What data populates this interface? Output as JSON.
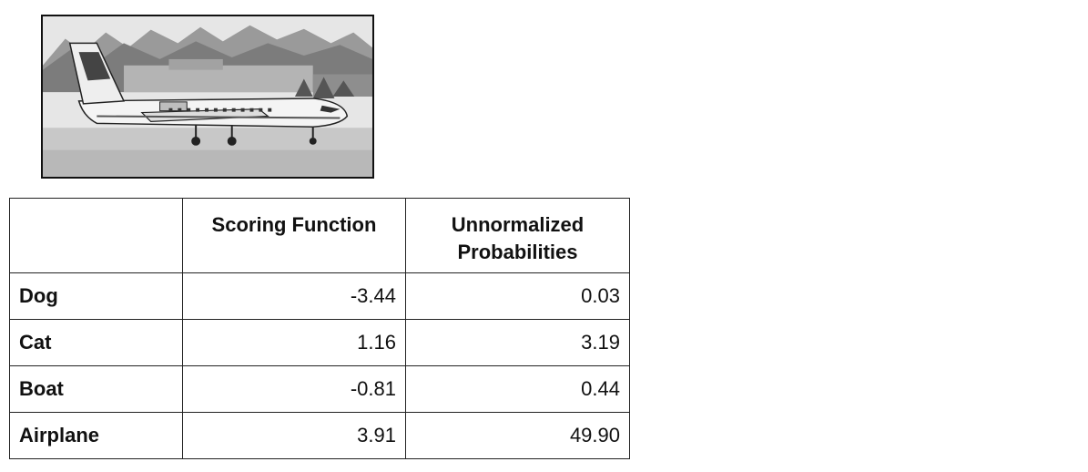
{
  "photo": {
    "description_icon": "airplane-photo"
  },
  "table": {
    "headers": [
      "",
      "Scoring Function",
      "Unnormalized Probabilities"
    ],
    "rows": [
      {
        "label": "Dog",
        "score": "-3.44",
        "prob": "0.03"
      },
      {
        "label": "Cat",
        "score": "1.16",
        "prob": "3.19"
      },
      {
        "label": "Boat",
        "score": "-0.81",
        "prob": "0.44"
      },
      {
        "label": "Airplane",
        "score": "3.91",
        "prob": "49.90"
      }
    ]
  }
}
